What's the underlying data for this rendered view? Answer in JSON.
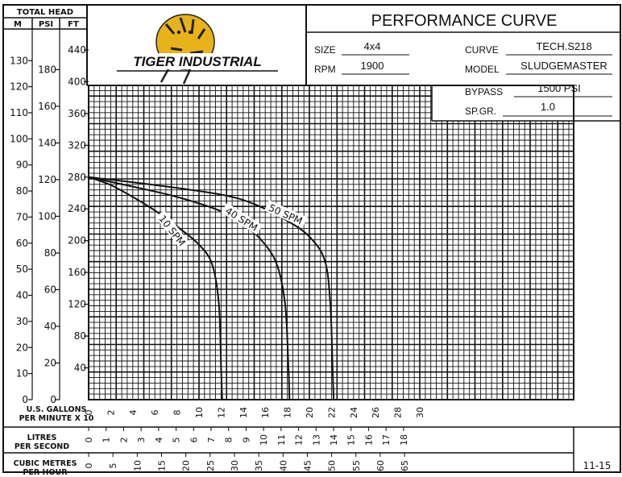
{
  "header": {
    "title": "PERFORMANCE CURVE",
    "logo_text": "TIGER INDUSTRIAL",
    "size_label": "SIZE",
    "size_value": "4x4",
    "rpm_label": "RPM",
    "rpm_value": "1900",
    "curve_label": "CURVE",
    "curve_value": "TECH.S218",
    "model_label": "MODEL",
    "model_value": "SLUDGEMASTER",
    "bypass_label": "BYPASS",
    "bypass_value": "1500 PSI",
    "spgr_label": "SP.GR.",
    "spgr_value": "1.0"
  },
  "head_axes": {
    "caption": "TOTAL HEAD",
    "col_m": "M",
    "col_psi": "PSI",
    "col_ft": "FT",
    "m_ticks": [
      "0",
      "10",
      "20",
      "30",
      "40",
      "50",
      "60",
      "70",
      "80",
      "90",
      "100",
      "110",
      "120",
      "130"
    ],
    "psi_ticks": [
      "0",
      "20",
      "40",
      "60",
      "80",
      "100",
      "120",
      "140",
      "160",
      "180"
    ],
    "ft_ticks": [
      "40",
      "80",
      "120",
      "160",
      "200",
      "240",
      "280",
      "320",
      "360",
      "400",
      "440"
    ]
  },
  "flow_axes": {
    "gpm_label_1": "U.S. GALLONS",
    "gpm_label_2": "PER MINUTE X 10",
    "gpm_ticks": [
      "0",
      "2",
      "4",
      "6",
      "8",
      "10",
      "12",
      "14",
      "16",
      "18",
      "20",
      "22",
      "24",
      "26",
      "28",
      "30"
    ],
    "lps_label_1": "LITRES",
    "lps_label_2": "PER SECOND",
    "lps_ticks": [
      "0",
      "1",
      "2",
      "3",
      "4",
      "5",
      "6",
      "7",
      "8",
      "9",
      "10",
      "11",
      "12",
      "13",
      "14",
      "15",
      "16",
      "17",
      "18"
    ],
    "cmh_label_1": "CUBIC METRES",
    "cmh_label_2": "PER HOUR",
    "cmh_ticks": [
      "0",
      "5",
      "10",
      "15",
      "20",
      "25",
      "30",
      "35",
      "40",
      "45",
      "50",
      "55",
      "60",
      "65"
    ]
  },
  "footer_code": "11-15",
  "chart_data": {
    "type": "line",
    "title": "PERFORMANCE CURVE",
    "xlabel": "U.S. GALLONS PER MINUTE X 10",
    "ylabel": "TOTAL HEAD (FT)",
    "xlim": [
      0,
      30
    ],
    "ylim": [
      0,
      400
    ],
    "grid": true,
    "series": [
      {
        "name": "10 SPM",
        "x": [
          0,
          2,
          4,
          6,
          8,
          10,
          11.2,
          11.8,
          12,
          12.1
        ],
        "y": [
          280,
          270,
          255,
          238,
          218,
          195,
          170,
          120,
          40,
          0
        ]
      },
      {
        "name": "40 SPM",
        "x": [
          0,
          4,
          8,
          12,
          14,
          15.5,
          17,
          17.8,
          18.1,
          18.2
        ],
        "y": [
          280,
          268,
          255,
          237,
          220,
          203,
          172,
          120,
          40,
          0
        ]
      },
      {
        "name": "50 SPM",
        "x": [
          0,
          6,
          12,
          15,
          18,
          20,
          21.4,
          21.9,
          22.1,
          22.2
        ],
        "y": [
          280,
          270,
          258,
          246,
          225,
          205,
          175,
          120,
          40,
          0
        ]
      }
    ],
    "line_labels": [
      "10 SPM",
      "40 SPM",
      "50 SPM"
    ]
  }
}
